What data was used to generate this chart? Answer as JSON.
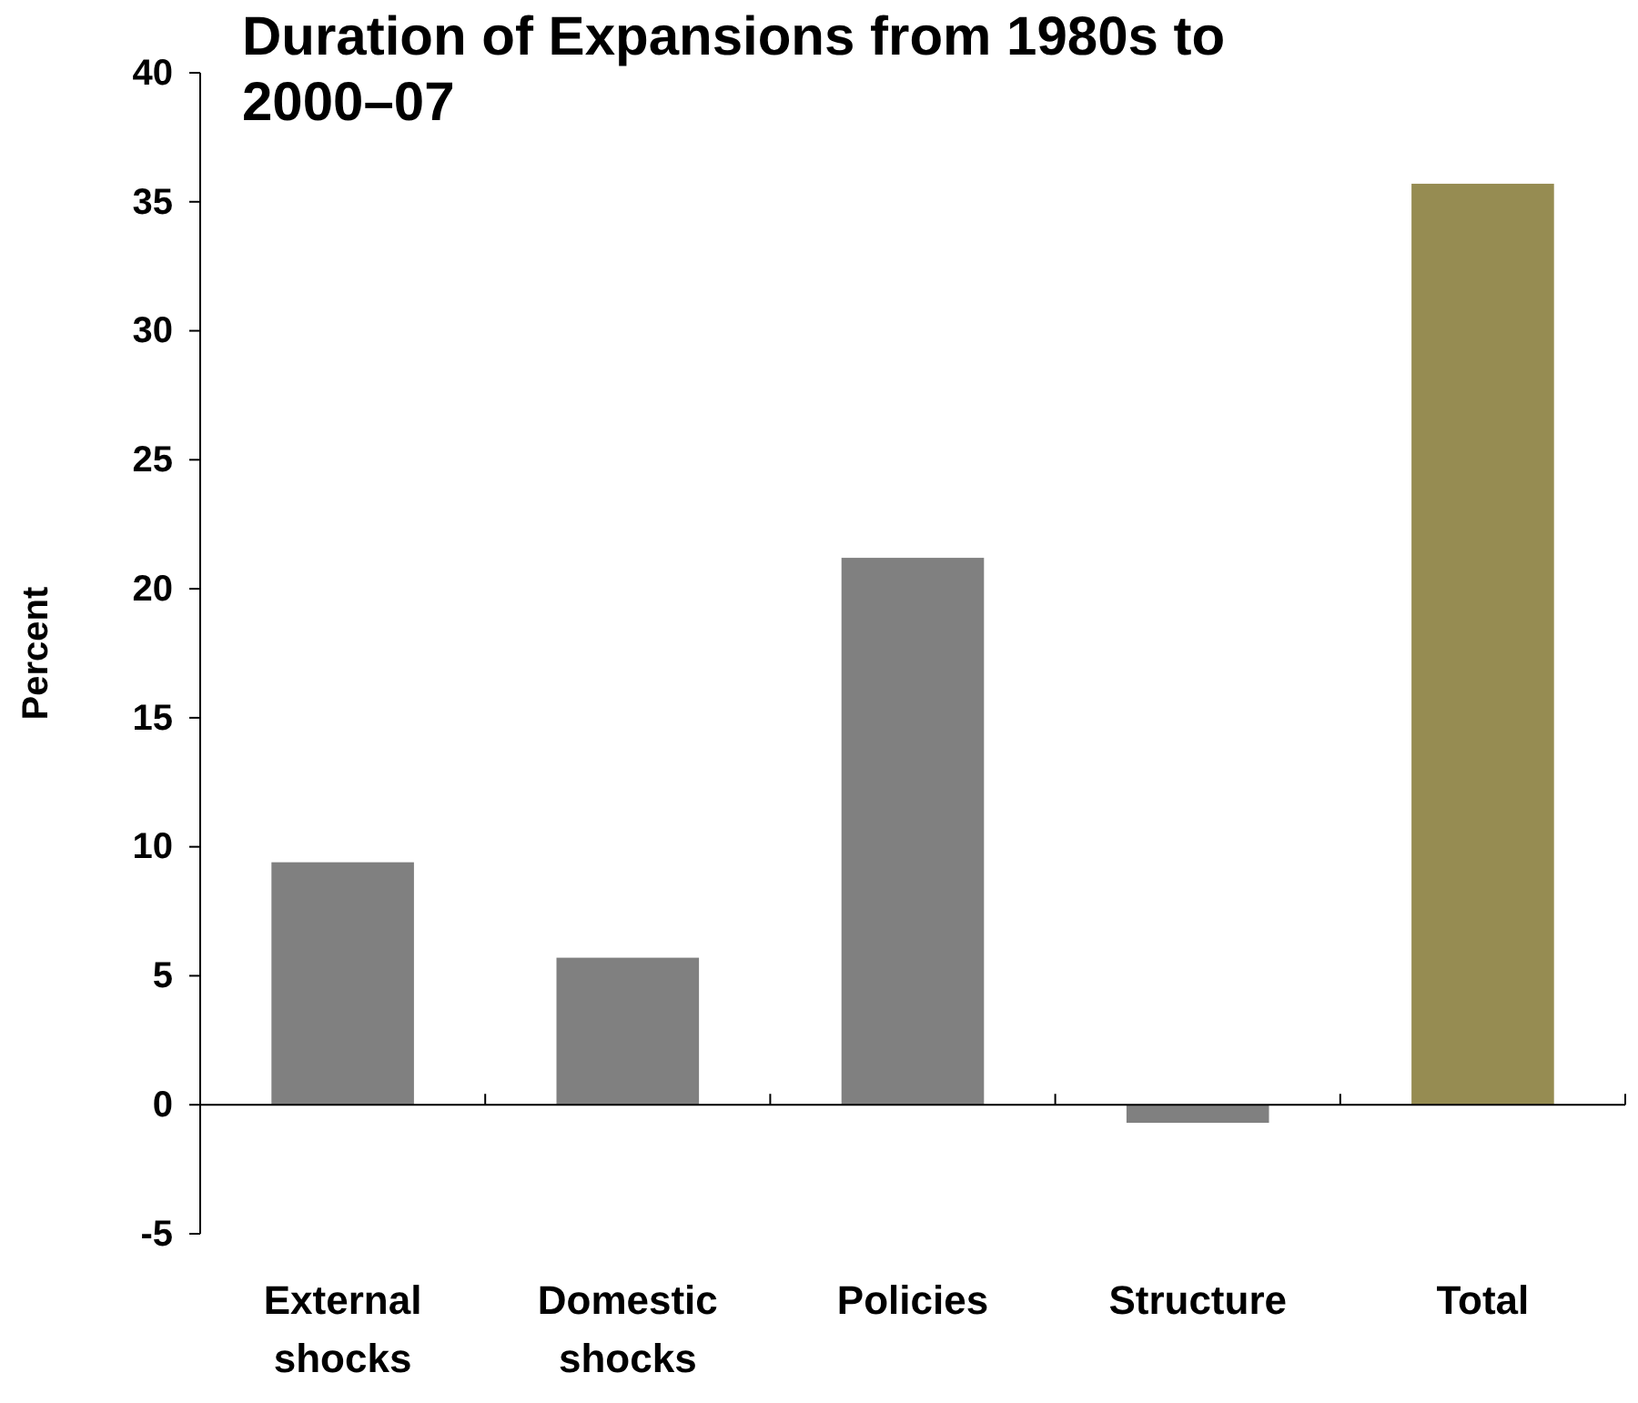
{
  "chart_data": {
    "type": "bar",
    "title": "Duration of Expansions from 1980s to 2000–07",
    "ylabel": "Percent",
    "categories": [
      "External shocks",
      "Domestic shocks",
      "Policies",
      "Structure",
      "Total"
    ],
    "values": [
      9.4,
      5.7,
      21.2,
      -0.7,
      35.7
    ],
    "colors": [
      "#808080",
      "#808080",
      "#808080",
      "#808080",
      "#968c52"
    ],
    "ylim": [
      -5,
      40
    ],
    "yticks": [
      -5,
      0,
      5,
      10,
      15,
      20,
      25,
      30,
      35,
      40
    ]
  }
}
